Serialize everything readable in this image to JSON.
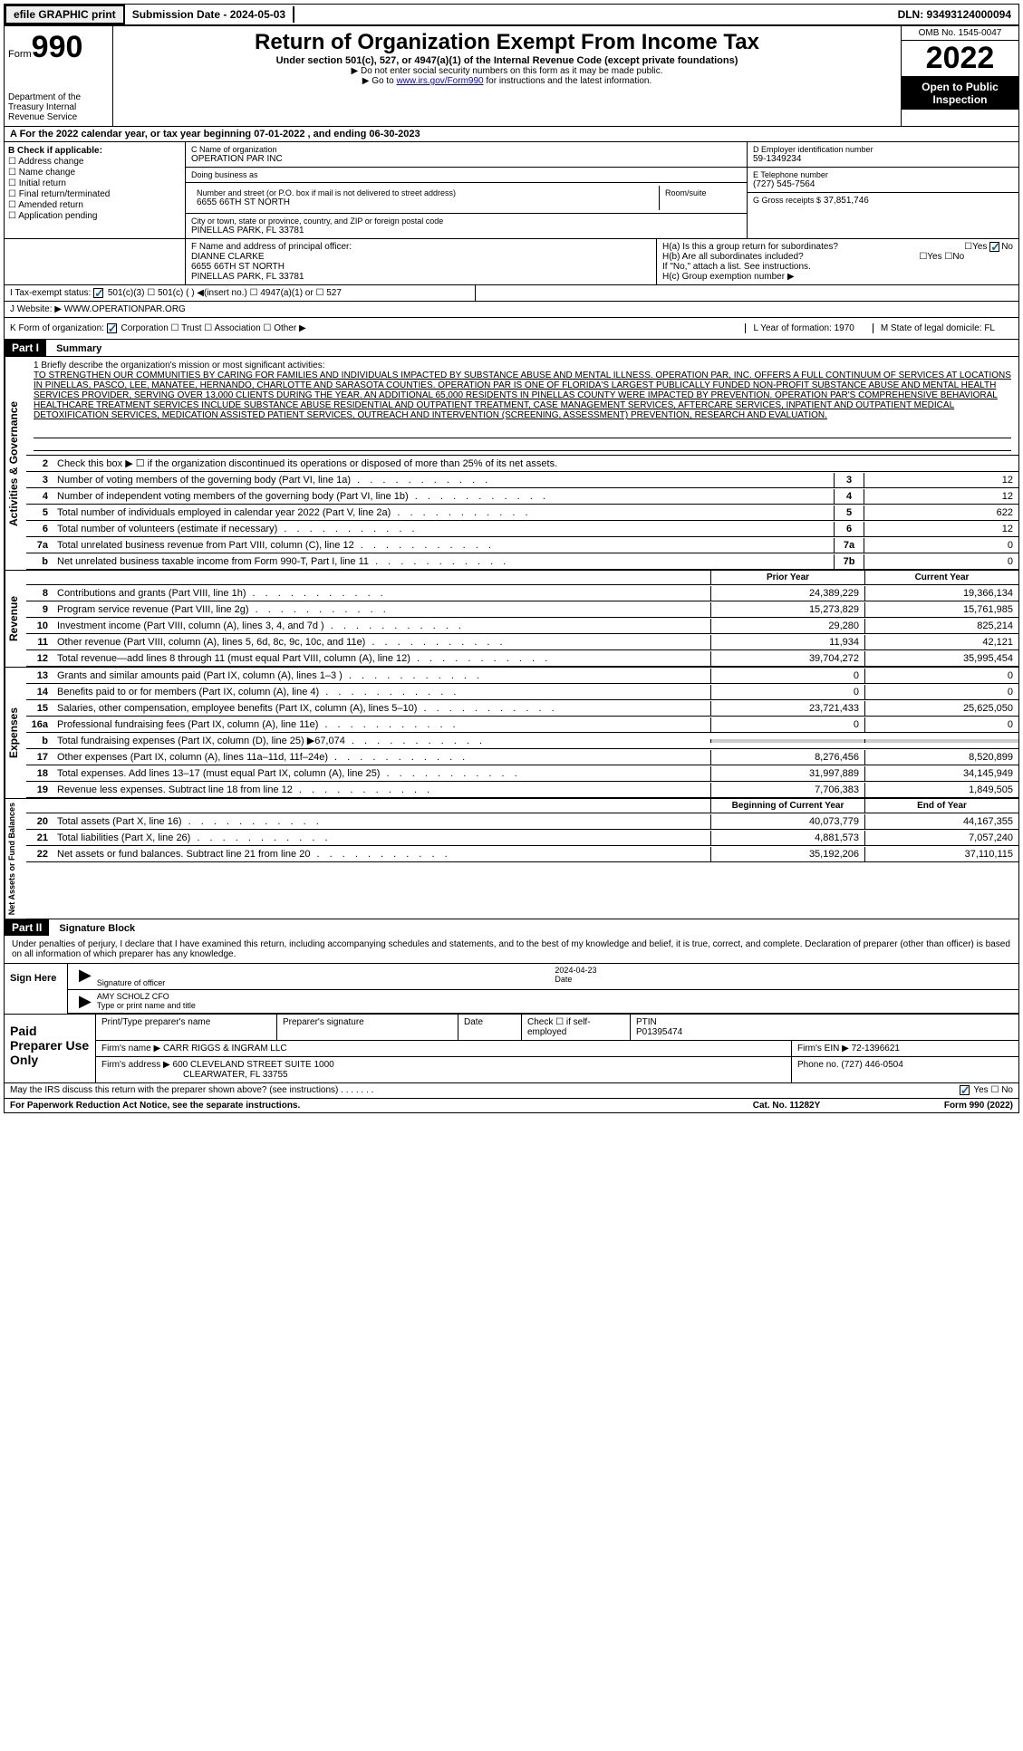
{
  "topbar": {
    "efile": "efile GRAPHIC print",
    "submission": "Submission Date - 2024-05-03",
    "dln": "DLN: 93493124000094"
  },
  "header": {
    "form_label": "Form",
    "form_num": "990",
    "dept": "Department of the Treasury Internal Revenue Service",
    "title": "Return of Organization Exempt From Income Tax",
    "subtitle": "Under section 501(c), 527, or 4947(a)(1) of the Internal Revenue Code (except private foundations)",
    "note1": "▶ Do not enter social security numbers on this form as it may be made public.",
    "note2": "▶ Go to ",
    "link": "www.irs.gov/Form990",
    "note3": " for instructions and the latest information.",
    "omb": "OMB No. 1545-0047",
    "year": "2022",
    "open": "Open to Public Inspection"
  },
  "row_a": "A For the 2022 calendar year, or tax year beginning 07-01-2022   , and ending 06-30-2023",
  "section_b": {
    "label": "B Check if applicable:",
    "items": [
      "Address change",
      "Name change",
      "Initial return",
      "Final return/terminated",
      "Amended return",
      "Application pending"
    ]
  },
  "section_c": {
    "name_label": "C Name of organization",
    "name": "OPERATION PAR INC",
    "dba_label": "Doing business as",
    "dba": "",
    "addr_label": "Number and street (or P.O. box if mail is not delivered to street address)",
    "addr": "6655 66TH ST NORTH",
    "room_label": "Room/suite",
    "city_label": "City or town, state or province, country, and ZIP or foreign postal code",
    "city": "PINELLAS PARK, FL  33781"
  },
  "section_d": {
    "label": "D Employer identification number",
    "value": "59-1349234"
  },
  "section_e": {
    "label": "E Telephone number",
    "value": "(727) 545-7564"
  },
  "section_g": {
    "label": "G Gross receipts $",
    "value": "37,851,746"
  },
  "section_f": {
    "label": "F Name and address of principal officer:",
    "name": "DIANNE CLARKE",
    "addr1": "6655 66TH ST NORTH",
    "addr2": "PINELLAS PARK, FL  33781"
  },
  "section_h": {
    "ha": "H(a)  Is this a group return for subordinates?",
    "hb": "H(b)  Are all subordinates included?",
    "hb_note": "If \"No,\" attach a list. See instructions.",
    "hc": "H(c)  Group exemption number ▶"
  },
  "row_i": {
    "label": "I   Tax-exempt status:",
    "opts": [
      "501(c)(3)",
      "501(c) (  ) ◀(insert no.)",
      "4947(a)(1) or",
      "527"
    ]
  },
  "row_j": {
    "label": "J   Website: ▶",
    "value": "WWW.OPERATIONPAR.ORG"
  },
  "row_k": {
    "label": "K Form of organization:",
    "opts": [
      "Corporation",
      "Trust",
      "Association",
      "Other ▶"
    ],
    "l": "L Year of formation: 1970",
    "m": "M State of legal domicile: FL"
  },
  "part1": {
    "hdr": "Part I",
    "title": "Summary"
  },
  "mission": {
    "label": "1   Briefly describe the organization's mission or most significant activities:",
    "text": "TO STRENGTHEN OUR COMMUNITIES BY CARING FOR FAMILIES AND INDIVIDUALS IMPACTED BY SUBSTANCE ABUSE AND MENTAL ILLNESS. OPERATION PAR, INC. OFFERS A FULL CONTINUUM OF SERVICES AT LOCATIONS IN PINELLAS, PASCO, LEE, MANATEE, HERNANDO, CHARLOTTE AND SARASOTA COUNTIES. OPERATION PAR IS ONE OF FLORIDA'S LARGEST PUBLICALLY FUNDED NON-PROFIT SUBSTANCE ABUSE AND MENTAL HEALTH SERVICES PROVIDER, SERVING OVER 13,000 CLIENTS DURING THE YEAR. AN ADDITIONAL 65,000 RESIDENTS IN PINELLAS COUNTY WERE IMPACTED BY PREVENTION. OPERATION PAR'S COMPREHENSIVE BEHAVIORAL HEALTHCARE TREATMENT SERVICES INCLUDE SUBSTANCE ABUSE RESIDENTIAL AND OUTPATIENT TREATMENT, CASE MANAGEMENT SERVICES, AFTERCARE SERVICES, INPATIENT AND OUTPATIENT MEDICAL DETOXIFICATION SERVICES, MEDICATION ASSISTED PATIENT SERVICES, OUTREACH AND INTERVENTION (SCREENING, ASSESSMENT) PREVENTION, RESEARCH AND EVALUATION."
  },
  "activities": {
    "tab": "Activities & Governance",
    "line2": "Check this box ▶ ☐ if the organization discontinued its operations or disposed of more than 25% of its net assets.",
    "lines": [
      {
        "n": "3",
        "label": "Number of voting members of the governing body (Part VI, line 1a)",
        "box": "3",
        "val": "12"
      },
      {
        "n": "4",
        "label": "Number of independent voting members of the governing body (Part VI, line 1b)",
        "box": "4",
        "val": "12"
      },
      {
        "n": "5",
        "label": "Total number of individuals employed in calendar year 2022 (Part V, line 2a)",
        "box": "5",
        "val": "622"
      },
      {
        "n": "6",
        "label": "Total number of volunteers (estimate if necessary)",
        "box": "6",
        "val": "12"
      },
      {
        "n": "7a",
        "label": "Total unrelated business revenue from Part VIII, column (C), line 12",
        "box": "7a",
        "val": "0"
      },
      {
        "n": "b",
        "label": "Net unrelated business taxable income from Form 990-T, Part I, line 11",
        "box": "7b",
        "val": "0"
      }
    ]
  },
  "revenue": {
    "tab": "Revenue",
    "hdr_prior": "Prior Year",
    "hdr_current": "Current Year",
    "lines": [
      {
        "n": "8",
        "label": "Contributions and grants (Part VIII, line 1h)",
        "py": "24,389,229",
        "cy": "19,366,134"
      },
      {
        "n": "9",
        "label": "Program service revenue (Part VIII, line 2g)",
        "py": "15,273,829",
        "cy": "15,761,985"
      },
      {
        "n": "10",
        "label": "Investment income (Part VIII, column (A), lines 3, 4, and 7d )",
        "py": "29,280",
        "cy": "825,214"
      },
      {
        "n": "11",
        "label": "Other revenue (Part VIII, column (A), lines 5, 6d, 8c, 9c, 10c, and 11e)",
        "py": "11,934",
        "cy": "42,121"
      },
      {
        "n": "12",
        "label": "Total revenue—add lines 8 through 11 (must equal Part VIII, column (A), line 12)",
        "py": "39,704,272",
        "cy": "35,995,454"
      }
    ]
  },
  "expenses": {
    "tab": "Expenses",
    "lines": [
      {
        "n": "13",
        "label": "Grants and similar amounts paid (Part IX, column (A), lines 1–3 )",
        "py": "0",
        "cy": "0"
      },
      {
        "n": "14",
        "label": "Benefits paid to or for members (Part IX, column (A), line 4)",
        "py": "0",
        "cy": "0"
      },
      {
        "n": "15",
        "label": "Salaries, other compensation, employee benefits (Part IX, column (A), lines 5–10)",
        "py": "23,721,433",
        "cy": "25,625,050"
      },
      {
        "n": "16a",
        "label": "Professional fundraising fees (Part IX, column (A), line 11e)",
        "py": "0",
        "cy": "0"
      },
      {
        "n": "b",
        "label": "Total fundraising expenses (Part IX, column (D), line 25) ▶67,074",
        "py": "",
        "cy": "",
        "grey": true
      },
      {
        "n": "17",
        "label": "Other expenses (Part IX, column (A), lines 11a–11d, 11f–24e)",
        "py": "8,276,456",
        "cy": "8,520,899"
      },
      {
        "n": "18",
        "label": "Total expenses. Add lines 13–17 (must equal Part IX, column (A), line 25)",
        "py": "31,997,889",
        "cy": "34,145,949"
      },
      {
        "n": "19",
        "label": "Revenue less expenses. Subtract line 18 from line 12",
        "py": "7,706,383",
        "cy": "1,849,505"
      }
    ]
  },
  "netassets": {
    "tab": "Net Assets or Fund Balances",
    "hdr_begin": "Beginning of Current Year",
    "hdr_end": "End of Year",
    "lines": [
      {
        "n": "20",
        "label": "Total assets (Part X, line 16)",
        "py": "40,073,779",
        "cy": "44,167,355"
      },
      {
        "n": "21",
        "label": "Total liabilities (Part X, line 26)",
        "py": "4,881,573",
        "cy": "7,057,240"
      },
      {
        "n": "22",
        "label": "Net assets or fund balances. Subtract line 21 from line 20",
        "py": "35,192,206",
        "cy": "37,110,115"
      }
    ]
  },
  "part2": {
    "hdr": "Part II",
    "title": "Signature Block"
  },
  "sig": {
    "text": "Under penalties of perjury, I declare that I have examined this return, including accompanying schedules and statements, and to the best of my knowledge and belief, it is true, correct, and complete. Declaration of preparer (other than officer) is based on all information of which preparer has any knowledge.",
    "sign_here": "Sign Here",
    "sig_officer": "Signature of officer",
    "date": "2024-04-23",
    "date_label": "Date",
    "name": "AMY SCHOLZ  CFO",
    "name_label": "Type or print name and title"
  },
  "prep": {
    "label": "Paid Preparer Use Only",
    "h1": "Print/Type preparer's name",
    "h2": "Preparer's signature",
    "h3": "Date",
    "h4": "Check ☐ if self-employed",
    "h5": "PTIN",
    "ptin": "P01395474",
    "firm_label": "Firm's name    ▶",
    "firm": "CARR RIGGS & INGRAM LLC",
    "ein_label": "Firm's EIN ▶",
    "ein": "72-1396621",
    "addr_label": "Firm's address ▶",
    "addr1": "600 CLEVELAND STREET SUITE 1000",
    "addr2": "CLEARWATER, FL  33755",
    "phone_label": "Phone no.",
    "phone": "(727) 446-0504"
  },
  "footer": {
    "discuss": "May the IRS discuss this return with the preparer shown above? (see instructions)",
    "yes": "Yes",
    "no": "No",
    "pra": "For Paperwork Reduction Act Notice, see the separate instructions.",
    "cat": "Cat. No. 11282Y",
    "form": "Form 990 (2022)"
  },
  "colors": {
    "link": "#0000ff",
    "check": "#0066cc",
    "black": "#000000",
    "grey": "#cccccc"
  }
}
